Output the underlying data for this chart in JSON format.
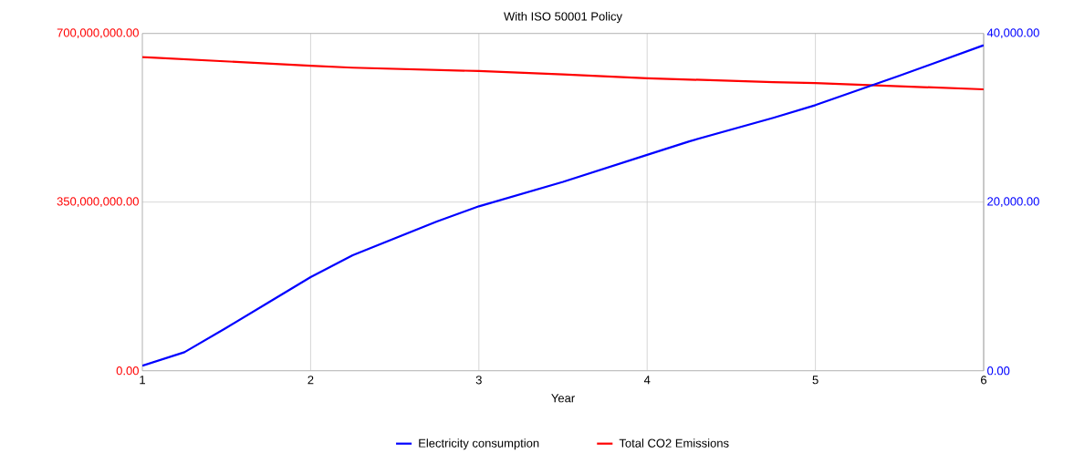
{
  "chart_data": {
    "type": "line",
    "title": "With ISO 50001 Policy",
    "xlabel": "Year",
    "x": [
      1,
      1.25,
      1.5,
      1.75,
      2,
      2.25,
      2.5,
      2.75,
      3,
      3.5,
      4,
      4.25,
      4.75,
      5,
      5.5,
      6
    ],
    "series": [
      {
        "name": "Electricity consumption",
        "color": "#0000ff",
        "axis": "y2",
        "values": [
          600,
          2200,
          5100,
          8100,
          11100,
          13700,
          15700,
          17700,
          19500,
          22400,
          25600,
          27200,
          30000,
          31500,
          35000,
          38600
        ]
      },
      {
        "name": "Total CO2 Emissions",
        "color": "#ff0000",
        "x": [
          1,
          2,
          2.25,
          3,
          3.5,
          4,
          4.75,
          5,
          6
        ],
        "values": [
          651000000,
          633000000,
          629000000,
          622000000,
          615000000,
          607000000,
          599000000,
          597000000,
          584000000
        ]
      }
    ],
    "xlim": [
      1,
      6
    ],
    "xticks": [
      1,
      2,
      3,
      4,
      5,
      6
    ],
    "ylim": [
      0,
      700000000
    ],
    "yticks": [
      {
        "value": 0,
        "label": "0.00"
      },
      {
        "value": 350000000,
        "label": "350,000,000.00"
      },
      {
        "value": 700000000,
        "label": "700,000,000.00"
      }
    ],
    "y2lim": [
      0,
      40000
    ],
    "y2ticks": [
      {
        "value": 0,
        "label": "0.00"
      },
      {
        "value": 20000,
        "label": "20,000.00"
      },
      {
        "value": 40000,
        "label": "40,000.00"
      }
    ],
    "grid": true,
    "legend": "bottom",
    "marker": "none",
    "line_style": "solid"
  }
}
